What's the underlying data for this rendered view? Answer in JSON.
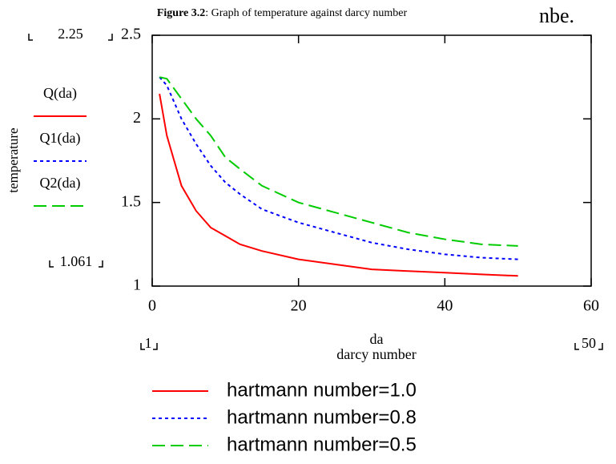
{
  "chart_data": {
    "type": "line",
    "title_prefix": "Figure 3.2",
    "title": ": Graph of temperature against darcy number",
    "header_fragment": "nbe.",
    "ylabel": "temperature",
    "xlabel": "da",
    "xlabel_sub": "darcy number",
    "y_range_markers": [
      2.25,
      1.061
    ],
    "x_range_markers": [
      1,
      50
    ],
    "x": [
      1,
      2,
      4,
      6,
      8,
      10,
      12,
      15,
      20,
      25,
      30,
      35,
      40,
      45,
      50
    ],
    "series": [
      {
        "name": "hartmann number=1.0",
        "trace_label": "Q(da)",
        "color": "#ff0000",
        "dash": "solid",
        "values": [
          2.15,
          1.9,
          1.6,
          1.45,
          1.35,
          1.3,
          1.25,
          1.21,
          1.16,
          1.13,
          1.1,
          1.09,
          1.08,
          1.07,
          1.061
        ]
      },
      {
        "name": "hartmann number=0.8",
        "trace_label": "Q1(da)",
        "color": "#0000ff",
        "dash": "dotted",
        "values": [
          2.25,
          2.2,
          2.0,
          1.85,
          1.72,
          1.62,
          1.55,
          1.46,
          1.38,
          1.32,
          1.26,
          1.22,
          1.19,
          1.17,
          1.16
        ]
      },
      {
        "name": "hartmann number=0.5",
        "trace_label": "Q2(da)",
        "color": "#00cc00",
        "dash": "dashed",
        "values": [
          2.25,
          2.24,
          2.12,
          2.0,
          1.9,
          1.77,
          1.7,
          1.6,
          1.5,
          1.44,
          1.38,
          1.32,
          1.28,
          1.25,
          1.24
        ]
      }
    ],
    "xlim": [
      0,
      60
    ],
    "xticks": [
      0,
      20,
      40,
      60
    ],
    "ylim": [
      1,
      2.5
    ],
    "yticks": [
      1,
      1.5,
      2,
      2.5
    ]
  }
}
